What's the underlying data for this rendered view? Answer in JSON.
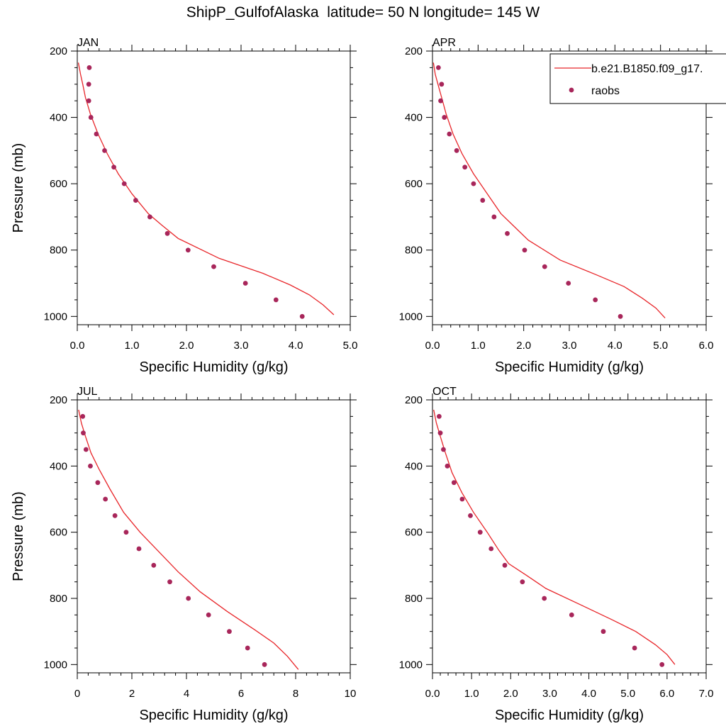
{
  "figure": {
    "title": "ShipP_GulfofAlaska  latitude= 50 N longitude= 145 W"
  },
  "legend": {
    "placement": "top-right of APR panel",
    "model_label": "b.e21.B1850.f09_g17.",
    "obs_label": "raobs"
  },
  "colors": {
    "model_line": "#e8262a",
    "obs_marker": "#a8265a"
  },
  "chart_data": [
    {
      "type": "line",
      "panel_label": "JAN",
      "xlabel": "Specific Humidity (g/kg)",
      "ylabel": "Pressure (mb)",
      "xlim": [
        0,
        5
      ],
      "ylim": [
        1025,
        200
      ],
      "y_inverted": true,
      "xticks": [
        0,
        1,
        2,
        3,
        4,
        5
      ],
      "xtick_labels": [
        "0.0",
        "1.0",
        "2.0",
        "3.0",
        "4.0",
        "5.0"
      ],
      "yticks": [
        200,
        400,
        600,
        800,
        1000
      ],
      "ytick_labels": [
        "200",
        "400",
        "600",
        "800",
        "1000"
      ],
      "series": [
        {
          "kind": "line",
          "points": [
            [
              0.02,
              235
            ],
            [
              0.06,
              270
            ],
            [
              0.1,
              300
            ],
            [
              0.15,
              340
            ],
            [
              0.24,
              390
            ],
            [
              0.38,
              450
            ],
            [
              0.55,
              510
            ],
            [
              0.75,
              570
            ],
            [
              1.0,
              630
            ],
            [
              1.3,
              690
            ],
            [
              1.55,
              725
            ],
            [
              1.85,
              765
            ],
            [
              2.6,
              825
            ],
            [
              3.4,
              870
            ],
            [
              3.9,
              905
            ],
            [
              4.25,
              935
            ],
            [
              4.5,
              965
            ],
            [
              4.7,
              995
            ]
          ]
        },
        {
          "kind": "markers",
          "points": [
            [
              0.22,
              250
            ],
            [
              0.21,
              300
            ],
            [
              0.21,
              350
            ],
            [
              0.25,
              400
            ],
            [
              0.35,
              450
            ],
            [
              0.5,
              500
            ],
            [
              0.67,
              550
            ],
            [
              0.86,
              600
            ],
            [
              1.07,
              650
            ],
            [
              1.33,
              700
            ],
            [
              1.65,
              750
            ],
            [
              2.03,
              800
            ],
            [
              2.5,
              850
            ],
            [
              3.08,
              900
            ],
            [
              3.64,
              950
            ],
            [
              4.12,
              1000
            ]
          ]
        }
      ]
    },
    {
      "type": "line",
      "panel_label": "APR",
      "xlabel": "Specific Humidity (g/kg)",
      "ylabel": "",
      "xlim": [
        0,
        6
      ],
      "ylim": [
        1025,
        200
      ],
      "y_inverted": true,
      "xticks": [
        0,
        1,
        2,
        3,
        4,
        5,
        6
      ],
      "xtick_labels": [
        "0.0",
        "1.0",
        "2.0",
        "3.0",
        "4.0",
        "5.0",
        "6.0"
      ],
      "yticks": [
        200,
        400,
        600,
        800,
        1000
      ],
      "ytick_labels": [
        "200",
        "400",
        "600",
        "800",
        "1000"
      ],
      "series": [
        {
          "kind": "line",
          "points": [
            [
              0.02,
              235
            ],
            [
              0.06,
              270
            ],
            [
              0.12,
              300
            ],
            [
              0.2,
              340
            ],
            [
              0.3,
              390
            ],
            [
              0.45,
              450
            ],
            [
              0.65,
              510
            ],
            [
              0.9,
              570
            ],
            [
              1.2,
              630
            ],
            [
              1.5,
              690
            ],
            [
              1.8,
              730
            ],
            [
              2.1,
              770
            ],
            [
              2.8,
              830
            ],
            [
              3.6,
              875
            ],
            [
              4.2,
              910
            ],
            [
              4.6,
              945
            ],
            [
              4.9,
              975
            ],
            [
              5.1,
              1005
            ]
          ]
        },
        {
          "kind": "markers",
          "points": [
            [
              0.13,
              250
            ],
            [
              0.2,
              300
            ],
            [
              0.18,
              350
            ],
            [
              0.26,
              400
            ],
            [
              0.37,
              450
            ],
            [
              0.53,
              500
            ],
            [
              0.71,
              550
            ],
            [
              0.9,
              600
            ],
            [
              1.1,
              650
            ],
            [
              1.35,
              700
            ],
            [
              1.64,
              750
            ],
            [
              2.02,
              800
            ],
            [
              2.46,
              850
            ],
            [
              2.98,
              900
            ],
            [
              3.57,
              950
            ],
            [
              4.12,
              1000
            ]
          ]
        }
      ]
    },
    {
      "type": "line",
      "panel_label": "JUL",
      "xlabel": "Specific Humidity (g/kg)",
      "ylabel": "Pressure (mb)",
      "xlim": [
        0,
        10
      ],
      "ylim": [
        1025,
        200
      ],
      "y_inverted": true,
      "xticks": [
        0,
        2,
        4,
        6,
        8,
        10
      ],
      "xtick_labels": [
        "0",
        "2",
        "4",
        "6",
        "8",
        "10"
      ],
      "yticks": [
        200,
        400,
        600,
        800,
        1000
      ],
      "ytick_labels": [
        "200",
        "400",
        "600",
        "800",
        "1000"
      ],
      "series": [
        {
          "kind": "line",
          "points": [
            [
              0.05,
              230
            ],
            [
              0.15,
              270
            ],
            [
              0.3,
              310
            ],
            [
              0.5,
              360
            ],
            [
              0.8,
              410
            ],
            [
              1.2,
              470
            ],
            [
              1.7,
              540
            ],
            [
              2.3,
              600
            ],
            [
              3.0,
              660
            ],
            [
              3.7,
              720
            ],
            [
              4.5,
              780
            ],
            [
              5.5,
              840
            ],
            [
              6.5,
              895
            ],
            [
              7.2,
              935
            ],
            [
              7.7,
              975
            ],
            [
              8.1,
              1015
            ]
          ]
        },
        {
          "kind": "markers",
          "points": [
            [
              0.2,
              250
            ],
            [
              0.22,
              300
            ],
            [
              0.32,
              350
            ],
            [
              0.48,
              400
            ],
            [
              0.75,
              450
            ],
            [
              1.03,
              500
            ],
            [
              1.38,
              550
            ],
            [
              1.79,
              600
            ],
            [
              2.26,
              650
            ],
            [
              2.8,
              700
            ],
            [
              3.39,
              750
            ],
            [
              4.07,
              800
            ],
            [
              4.81,
              850
            ],
            [
              5.57,
              900
            ],
            [
              6.24,
              950
            ],
            [
              6.86,
              1000
            ]
          ]
        }
      ]
    },
    {
      "type": "line",
      "panel_label": "OCT",
      "xlabel": "Specific Humidity (g/kg)",
      "ylabel": "",
      "xlim": [
        0,
        7
      ],
      "ylim": [
        1025,
        200
      ],
      "y_inverted": true,
      "xticks": [
        0,
        1,
        2,
        3,
        4,
        5,
        6,
        7
      ],
      "xtick_labels": [
        "0.0",
        "1.0",
        "2.0",
        "3.0",
        "4.0",
        "5.0",
        "6.0",
        "7.0"
      ],
      "yticks": [
        200,
        400,
        600,
        800,
        1000
      ],
      "ytick_labels": [
        "200",
        "400",
        "600",
        "800",
        "1000"
      ],
      "series": [
        {
          "kind": "line",
          "points": [
            [
              0.03,
              230
            ],
            [
              0.1,
              270
            ],
            [
              0.2,
              310
            ],
            [
              0.33,
              360
            ],
            [
              0.5,
              420
            ],
            [
              0.75,
              480
            ],
            [
              1.05,
              540
            ],
            [
              1.4,
              600
            ],
            [
              1.7,
              655
            ],
            [
              1.95,
              695
            ],
            [
              2.4,
              730
            ],
            [
              2.9,
              770
            ],
            [
              3.8,
              820
            ],
            [
              4.6,
              865
            ],
            [
              5.2,
              900
            ],
            [
              5.7,
              940
            ],
            [
              6.0,
              970
            ],
            [
              6.2,
              1000
            ]
          ]
        },
        {
          "kind": "markers",
          "points": [
            [
              0.17,
              250
            ],
            [
              0.2,
              300
            ],
            [
              0.28,
              350
            ],
            [
              0.38,
              400
            ],
            [
              0.55,
              450
            ],
            [
              0.76,
              500
            ],
            [
              0.97,
              550
            ],
            [
              1.22,
              600
            ],
            [
              1.5,
              650
            ],
            [
              1.85,
              700
            ],
            [
              2.3,
              750
            ],
            [
              2.86,
              800
            ],
            [
              3.56,
              850
            ],
            [
              4.37,
              900
            ],
            [
              5.17,
              950
            ],
            [
              5.87,
              1000
            ]
          ]
        }
      ]
    }
  ]
}
